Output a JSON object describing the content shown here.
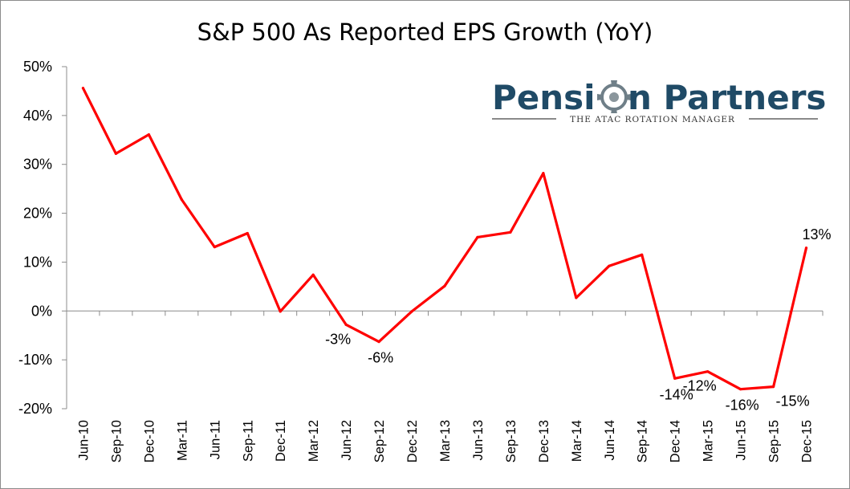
{
  "chart_data": {
    "type": "line",
    "title": "S&P 500 As Reported EPS Growth (YoY)",
    "xlabel": "",
    "ylabel": "",
    "ylim": [
      -20,
      50
    ],
    "yticks": [
      "50%",
      "40%",
      "30%",
      "20%",
      "10%",
      "0%",
      "-10%",
      "-20%"
    ],
    "categories": [
      "Jun-10",
      "Sep-10",
      "Dec-10",
      "Mar-11",
      "Jun-11",
      "Sep-11",
      "Dec-11",
      "Mar-12",
      "Jun-12",
      "Sep-12",
      "Dec-12",
      "Mar-13",
      "Jun-13",
      "Sep-13",
      "Dec-13",
      "Mar-14",
      "Jun-14",
      "Sep-14",
      "Dec-14",
      "Mar-15",
      "Jun-15",
      "Sep-15",
      "Dec-15"
    ],
    "series": [
      {
        "color": "#ff0000",
        "values": [
          45.6,
          32.2,
          36.1,
          22.8,
          13.1,
          15.9,
          -0.1,
          7.4,
          -2.8,
          -6.3,
          -0.1,
          5.1,
          15.1,
          16.1,
          28.2,
          2.7,
          9.2,
          11.5,
          -13.8,
          -12.4,
          -16.0,
          -15.5,
          12.9
        ]
      }
    ],
    "data_labels": [
      {
        "index": 8,
        "text": "-3%",
        "pos": "below-left"
      },
      {
        "index": 9,
        "text": "-6%",
        "pos": "below"
      },
      {
        "index": 18,
        "text": "-14%",
        "pos": "below"
      },
      {
        "index": 19,
        "text": "-12%",
        "pos": "below-left"
      },
      {
        "index": 20,
        "text": "-16%",
        "pos": "below"
      },
      {
        "index": 21,
        "text": "-15%",
        "pos": "below-right"
      },
      {
        "index": 22,
        "text": "13%",
        "pos": "above-right"
      }
    ],
    "grid": false,
    "legend": "none"
  },
  "logo": {
    "name_part1": "Pensi",
    "name_part2": "n Partners",
    "tagline": "THE ATAC ROTATION MANAGER"
  }
}
